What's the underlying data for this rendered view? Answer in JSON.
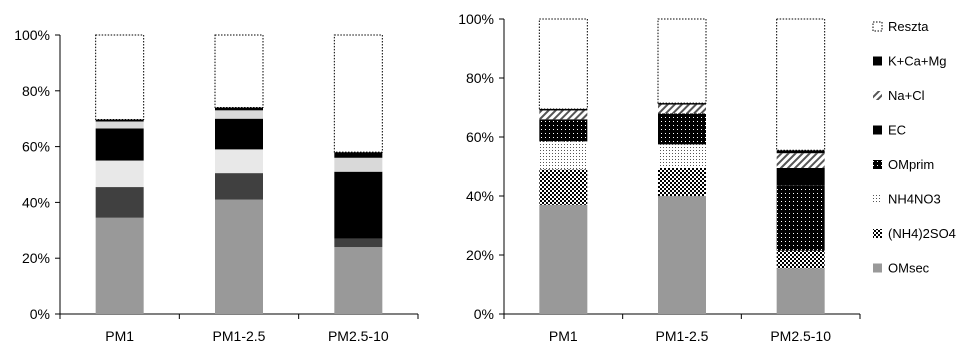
{
  "chart_data": [
    {
      "type": "bar",
      "stacked": true,
      "categories": [
        "PM1",
        "PM1-2.5",
        "PM2.5-10"
      ],
      "ylim": [
        0,
        100
      ],
      "yticks": [
        "0%",
        "20%",
        "40%",
        "60%",
        "80%",
        "100%"
      ],
      "grid": false,
      "series": [
        {
          "values": [
            34.5,
            41,
            24
          ],
          "color": "#999999"
        },
        {
          "values": [
            11,
            9.5,
            3
          ],
          "color": "#404040"
        },
        {
          "values": [
            9.5,
            8.5,
            0
          ],
          "color": "#e8e8e8"
        },
        {
          "values": [
            11.5,
            11,
            24
          ],
          "color": "#000000"
        },
        {
          "values": [
            2.5,
            3,
            5
          ],
          "color": "#d9d9d9"
        },
        {
          "values": [
            0.7,
            1,
            2
          ],
          "color": "#000000"
        },
        {
          "values": [
            30.3,
            26,
            42
          ],
          "color": "#ffffff",
          "dotted": true
        }
      ]
    },
    {
      "type": "bar",
      "stacked": true,
      "categories": [
        "PM1",
        "PM1-2.5",
        "PM2.5-10"
      ],
      "ylim": [
        0,
        100
      ],
      "yticks": [
        "0%",
        "20%",
        "40%",
        "60%",
        "80%",
        "100%"
      ],
      "grid": false,
      "legend_position": "right",
      "series": [
        {
          "name": "OMsec",
          "values": [
            37,
            40,
            15.5
          ],
          "pattern": "solid-gray"
        },
        {
          "name": "(NH4)2SO4",
          "values": [
            12,
            9.5,
            6
          ],
          "pattern": "checker"
        },
        {
          "name": "NH4NO3",
          "values": [
            9.5,
            8,
            0
          ],
          "pattern": "fine-dots"
        },
        {
          "name": "OMprim",
          "values": [
            7.5,
            10.5,
            22
          ],
          "pattern": "black-dots"
        },
        {
          "name": "EC",
          "values": [
            0,
            0,
            6
          ],
          "pattern": "solid-black"
        },
        {
          "name": "Na+Cl",
          "values": [
            3,
            3,
            5
          ],
          "pattern": "hatch"
        },
        {
          "name": "K+Ca+Mg",
          "values": [
            0.5,
            0.5,
            1
          ],
          "pattern": "solid-black"
        },
        {
          "name": "Reszta",
          "values": [
            30.5,
            28.5,
            44.5
          ],
          "pattern": "dotted-white"
        }
      ]
    }
  ]
}
